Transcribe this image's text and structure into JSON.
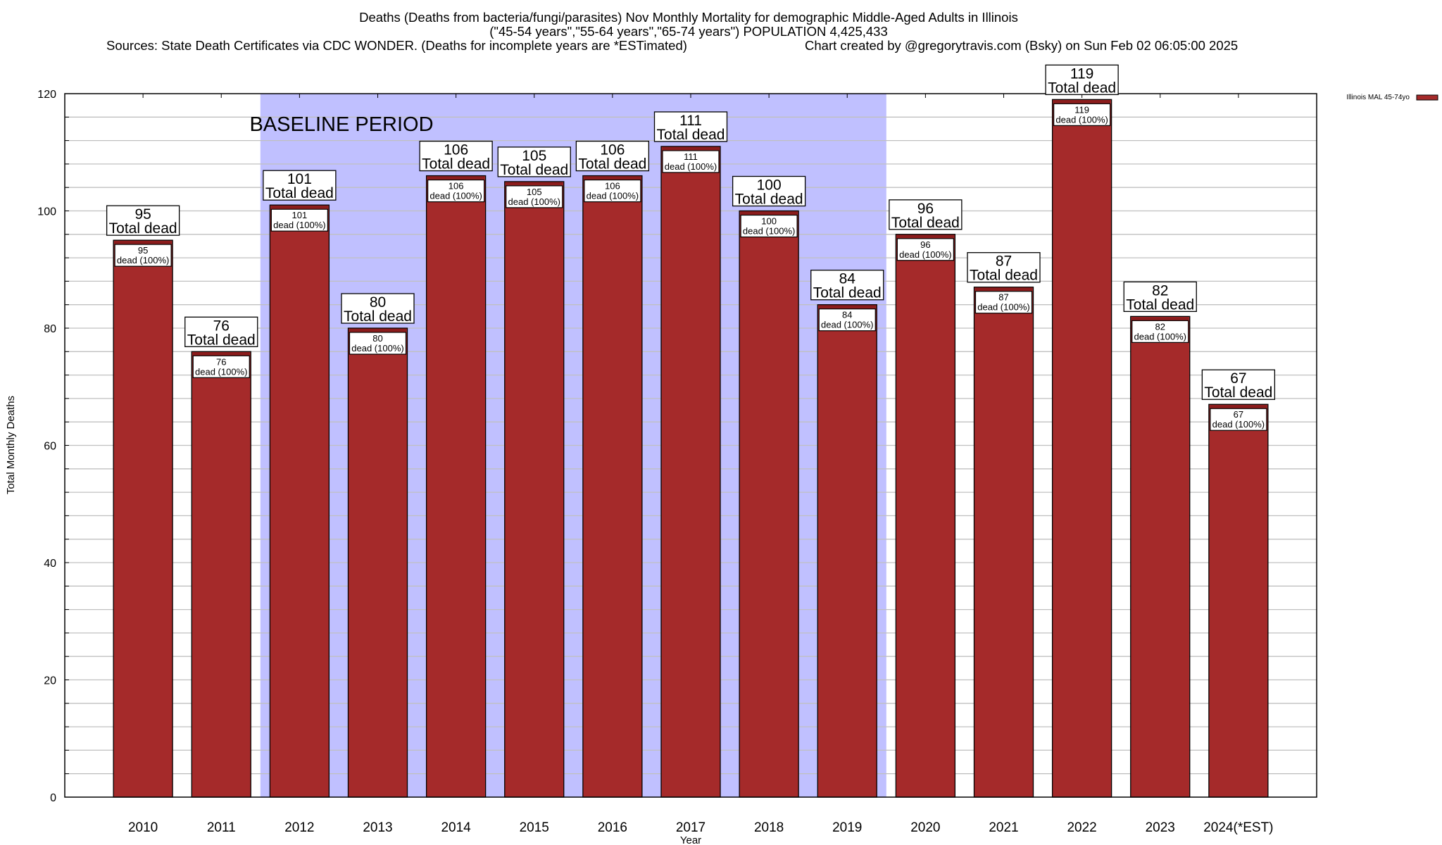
{
  "chart_data": {
    "type": "bar",
    "title_lines": [
      "Deaths (Deaths from bacteria/fungi/parasites) Nov Monthly Mortality for demographic Middle-Aged Adults in Illinois",
      "(\"45-54 years\",\"55-64 years\",\"65-74 years\") POPULATION 4,425,433"
    ],
    "sources": "Sources: State Death Certificates via CDC WONDER. (Deaths for incomplete years are *ESTimated)",
    "credit": "Chart created by @gregorytravis.com (Bsky) on Sun Feb 02 06:05:00 2025",
    "xlabel": "Year",
    "ylabel": "Total Monthly Deaths",
    "ylim": [
      0,
      120
    ],
    "yticks": [
      0,
      20,
      40,
      60,
      80,
      100,
      120
    ],
    "grid": true,
    "grid_step": 4,
    "categories": [
      "2010",
      "2011",
      "2012",
      "2013",
      "2014",
      "2015",
      "2016",
      "2017",
      "2018",
      "2019",
      "2020",
      "2021",
      "2022",
      "2023",
      "2024(*EST)"
    ],
    "series": [
      {
        "name": "Illinois MAL 45-74yo",
        "color": "#a52a2a",
        "values": [
          95,
          76,
          101,
          80,
          106,
          105,
          106,
          111,
          100,
          84,
          96,
          87,
          119,
          82,
          67
        ]
      }
    ],
    "top_label_suffix": "Total dead",
    "inner_label_suffix": "dead (100%)",
    "legend": {
      "label": "Illinois MAL 45-74yo",
      "position": "top-right"
    },
    "annotation": {
      "text": "BASELINE PERIOD",
      "from_category": "2012",
      "to_category": "2019",
      "color": "#c0c0ff"
    }
  }
}
